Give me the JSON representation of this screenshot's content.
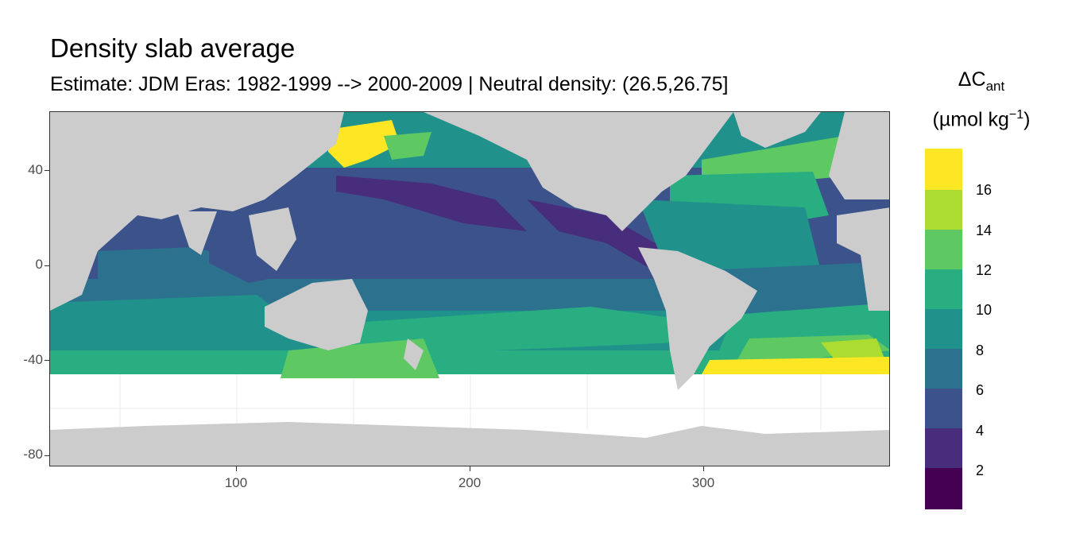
{
  "map": {
    "title": "Density slab average",
    "subtitle": "Estimate: JDM Eras: 1982-1999 --> 2000-2009 | Neutral density: (26.5,26.75]",
    "x_axis": {
      "range": [
        20,
        380
      ],
      "ticks": [
        "100",
        "200",
        "300"
      ]
    },
    "y_axis": {
      "range": [
        -85,
        65
      ],
      "ticks": [
        "40",
        "0",
        "-40",
        "-80"
      ]
    },
    "land_color": "#cccccc",
    "no_data_color": "#ffffff"
  },
  "legend": {
    "title_main": "ΔC",
    "title_sub": "ant",
    "title_unit_open": "(µmol kg",
    "title_unit_sup": "−1",
    "title_unit_close": ")",
    "labels": [
      "16",
      "14",
      "12",
      "10",
      "8",
      "6",
      "4",
      "2"
    ],
    "bins": [
      {
        "range": "16+",
        "color": "#fde725"
      },
      {
        "range": "14-16",
        "color": "#addc30"
      },
      {
        "range": "12-14",
        "color": "#5ec962"
      },
      {
        "range": "10-12",
        "color": "#28ae80"
      },
      {
        "range": "8-10",
        "color": "#21918c"
      },
      {
        "range": "6-8",
        "color": "#2c728e"
      },
      {
        "range": "4-6",
        "color": "#3b528b"
      },
      {
        "range": "2-4",
        "color": "#472d7b"
      },
      {
        "range": "0-2",
        "color": "#440154"
      }
    ]
  }
}
